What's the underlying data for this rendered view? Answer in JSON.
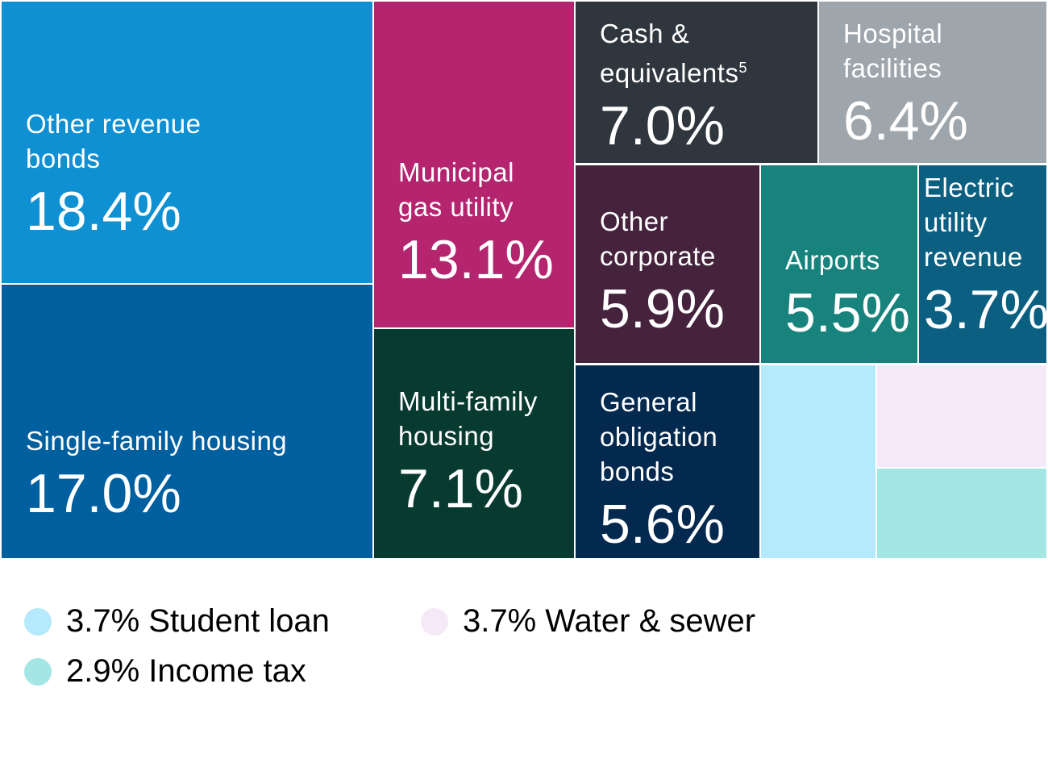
{
  "chart_data": {
    "type": "treemap",
    "unit": "%",
    "items": [
      {
        "label": "Other revenue bonds",
        "value": 18.4,
        "value_label": "18.4%",
        "color": "#0e90d2"
      },
      {
        "label": "Single-family housing",
        "value": 17.0,
        "value_label": "17.0%",
        "color": "#005f9e"
      },
      {
        "label": "Municipal gas utility",
        "value": 13.1,
        "value_label": "13.1%",
        "color": "#b5246f"
      },
      {
        "label": "Multi-family housing",
        "value": 7.1,
        "value_label": "7.1%",
        "color": "#083b2f"
      },
      {
        "label": "Cash & equivalents",
        "footnote": "5",
        "value": 7.0,
        "value_label": "7.0%",
        "color": "#30363e"
      },
      {
        "label": "Hospital facilities",
        "value": 6.4,
        "value_label": "6.4%",
        "color": "#9ea5ab"
      },
      {
        "label": "Other corporate",
        "value": 5.9,
        "value_label": "5.9%",
        "color": "#46233d"
      },
      {
        "label": "Airports",
        "value": 5.5,
        "value_label": "5.5%",
        "color": "#18837d"
      },
      {
        "label": "Electric utility revenue",
        "value": 3.7,
        "value_label": "3.7%",
        "color": "#0b5f80"
      },
      {
        "label": "General obligation bonds",
        "value": 5.6,
        "value_label": "5.6%",
        "color": "#03294e"
      },
      {
        "label": "Student loan",
        "value": 3.7,
        "value_label": "3.7%",
        "color": "#b5e9fc",
        "in_legend": true
      },
      {
        "label": "Water & sewer",
        "value": 3.7,
        "value_label": "3.7%",
        "color": "#f5e9f7",
        "in_legend": true
      },
      {
        "label": "Income tax",
        "value": 2.9,
        "value_label": "2.9%",
        "color": "#a3e6e4",
        "in_legend": true
      }
    ]
  },
  "legend": [
    {
      "text": "3.7% Student loan",
      "color": "#b5e9fc"
    },
    {
      "text": "2.9% Income tax",
      "color": "#a3e6e4"
    },
    {
      "text": "3.7% Water & sewer",
      "color": "#f5e9f7"
    }
  ]
}
